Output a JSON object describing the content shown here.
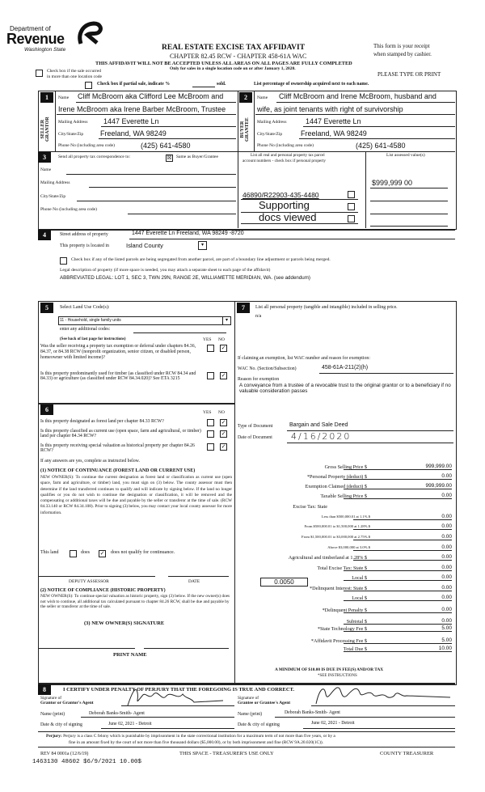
{
  "header": {
    "dept_of": "Department of",
    "revenue": "Revenue",
    "state": "Washington State",
    "title": "REAL ESTATE EXCISE TAX AFFIDAVIT",
    "chapter": "CHAPTER 82.45 RCW - CHAPTER 458-61A WAC",
    "warning": "THIS AFFIDAVIT WILL NOT BE ACCEPTED UNLESS ALL AREAS ON ALL PAGES ARE FULLY COMPLETED",
    "only_for": "Only for sales in a single location code on or after January 1, 2020.",
    "receipt_1": "This form is your receipt",
    "receipt_2": "when stamped by cashier.",
    "multi_location_1": "Check box if the sale occurred",
    "multi_location_2": "in more than one location code",
    "please_type": "PLEASE TYPE OR PRINT",
    "partial_sale": "Check box if partial sale, indicate %",
    "sold": "sold.",
    "list_pct": "List percentage of ownership acquired next to each name."
  },
  "section1": {
    "num": "1",
    "side_label_1": "SELLER",
    "side_label_2": "GRANTOR",
    "name_label": "Name",
    "name_1": "Cliff McBroom aka Clifford Lee McBroom and",
    "name_2": "Irene McBroom aka Irene Barber McBroom, Trustee",
    "mailing_label": "Mailing Address",
    "mailing": "1447 Everette Ln",
    "city_label": "City/State/Zip",
    "city": "Freeland, WA 98249",
    "phone_label": "Phone No (including area code)",
    "phone": "(425) 641-4580"
  },
  "section2": {
    "num": "2",
    "side_label_1": "BUYER",
    "side_label_2": "GRANTEE",
    "name_label": "Name",
    "name_1": "Cliff McBroom and Irene McBroom, husband and",
    "name_2": "wife, as joint tenants with right of survivorship",
    "mailing_label": "Mailing Address",
    "mailing": "1447 Everette Ln",
    "city_label": "City/State/Zip",
    "city": "Freeland, WA 98249",
    "phone_label": "Phone No (including area code)",
    "phone": "(425) 641-4580"
  },
  "section3": {
    "num": "3",
    "send_label": "Send all property tax correspondence to:",
    "same_as": "Same as Buyer/Grantee",
    "same_checked": true,
    "name_label": "Name",
    "mailing_label": "Mailing Address",
    "city_label": "City/State/Zip",
    "phone_label": "Phone No (including area code)",
    "parcel_header_1": "List all real and personal property tax parcel",
    "parcel_header_2": "account numbers - check box if personal property",
    "assessed_header": "List assessed value(s)",
    "parcel_1": "46890/R22903-435-4480",
    "assessed_1": "$999,999 00",
    "stamp_1": "Supporting",
    "stamp_2": "docs viewed"
  },
  "section4": {
    "num": "4",
    "street_label": "Street address of property",
    "street": "1447 Everette Ln Freeland, WA 98249 -8720",
    "located_label": "This property is located in",
    "county": "Island County",
    "segregated": "Check box if any of the listed parcels are being segregated from another parcel, are part of a boundary line adjustment or parcels being merged.",
    "legal_label": "Legal description of property (if more space is needed, you may attach a separate sheet to each page of the affidavit)",
    "legal": "ABBREVIATED LEGAL: LOT 1, SEC 3, TWN 29N, RANGE 2E, WILLIAMETTE MERIDIAN, WA. (see addendum)"
  },
  "section5": {
    "num": "5",
    "select_label": "Select Land Use Code(s):",
    "land_use": "11 - Household, single family units",
    "additional": "enter any additional codes:",
    "see_back": "(See back of last page for instructions)",
    "yes": "YES",
    "no": "NO",
    "q1": "Was the seller receiving a property tax exemption or deferral under chapters 84.36, 84.37, or 84.38 RCW (nonprofit organization, senior citizen, or disabled person, homeowner with limited income)?",
    "q2": "Is this property predominantly used for timber (as classified under RCW 84.34 and 84.33) or agriculture (as classified under RCW 84.34.020)? See ETA 3215"
  },
  "section6": {
    "num": "6",
    "yes": "YES",
    "no": "NO",
    "q1": "Is this property designated as forest land per chapter 84.33 RCW?",
    "q2": "Is this property classified as current use (open space, farm and agricultural, or timber) land per chapter 84.34 RCW?",
    "q3": "Is this property receiving special valuation as historical property per chapter 84.26 RCW?",
    "if_yes": "If any answers are yes, complete as instructed below.",
    "notice1_title": "(1) NOTICE OF CONTINUANCE (FOREST LAND OR CURRENT USE)",
    "notice1_text": "NEW OWNER(S): To continue the current designation as forest land or classification as current use (open space, farm and agriculture, or timber) land, you must sign on (3) below. The county assessor must then determine if the land transferred continues to qualify and will indicate by signing below. If the land no longer qualifies or you do not wish to continue the designation or classification, it will be removed and the compensating or additional taxes will be due and payable by the seller or transferor at the time of sale. (RCW 84.33.140 or RCW 84.34.108). Prior to signing (3) below, you may contact your local county assessor for more information.",
    "this_land": "This land",
    "does": "does",
    "does_not": "does not qualify for continuance.",
    "deputy": "DEPUTY ASSESSOR",
    "date": "DATE",
    "notice2_title": "(2) NOTICE OF COMPLIANCE (HISTORIC PROPERTY)",
    "notice2_text": "NEW OWNER(S): To continue special valuation as historic property, sign (3) below. If the new owner(s) does not wish to continue, all additional tax calculated pursuant to chapter 84.26 RCW, shall be due and payable by the seller or transferor at the time of sale.",
    "new_owner_sig": "(3) NEW OWNER(S) SIGNATURE",
    "print_name": "PRINT NAME"
  },
  "section7": {
    "num": "7",
    "list_label": "List all personal property (tangible and intangible) included in selling price.",
    "personal_property": "n/a",
    "exemption_label": "If claiming an exemption, list WAC number and reason for exemption:",
    "wac_label": "WAC No. (Section/Subsection)",
    "wac": "458-61A-211(2)(h)",
    "reason_label": "Reason for exemption",
    "reason": "A conveyance from a trustee of a revocable trust to the original grantor or to a beneficiary if no valuable consideration passes",
    "doc_type_label": "Type of Document",
    "doc_type": "Bargain and Sale Deed",
    "doc_date_label": "Date of Document",
    "doc_date": "4/16/2020",
    "local_rate": "0.0050",
    "fees": [
      {
        "label": "Gross Selling Price  $",
        "value": "999,999.00"
      },
      {
        "label": "*Personal Property (deduct)  $",
        "value": "0.00"
      },
      {
        "label": "Exemption Claimed (deduct)  $",
        "value": "999,999.00"
      },
      {
        "label": "Taxable Selling Price  $",
        "value": "0.00"
      },
      {
        "label": "Excise Tax: State",
        "value": ""
      },
      {
        "label": "Less than $500,000.01 at 1.1%  $",
        "value": "0.00"
      },
      {
        "label": "From $500,000.01 to $1,500,000 at 1.28%  $",
        "value": "0.00"
      },
      {
        "label": "From $1,500,000.01 to $3,000,000 at 2.75%  $",
        "value": "0.00"
      },
      {
        "label": "Above $3,000,000 at 3.0%  $",
        "value": "0.00"
      },
      {
        "label": "Agricultural and timberland at 1.28%  $",
        "value": "0.00"
      },
      {
        "label": "Total Excise Tax: State  $",
        "value": "0.00"
      },
      {
        "label": "Local  $",
        "value": "0.00"
      },
      {
        "label": "*Delinquent Interest: State  $",
        "value": "0.00"
      },
      {
        "label": "Local  $",
        "value": "0.00"
      },
      {
        "label": "*Delinquent Penalty  $",
        "value": "0.00"
      },
      {
        "label": "Subtotal  $",
        "value": "0.00"
      },
      {
        "label": "*State Technology Fee  $",
        "value": "5.00"
      },
      {
        "label": "*Affidavit Processing Fee  $",
        "value": "5.00"
      },
      {
        "label": "Total Due  $",
        "value": "10.00"
      }
    ],
    "minimum": "A MINIMUM OF $10.00 IS DUE IN FEE(S) AND/OR TAX",
    "see_instructions": "*SEE INSTRUCTIONS"
  },
  "section8": {
    "num": "8",
    "certify": "I CERTIFY UNDER PENALTY OF PERJURY THAT THE FOREGOING IS TRUE AND CORRECT.",
    "grantor_sig_1": "Signature of",
    "grantor_sig_2": "Grantor or Grantor's Agent",
    "grantee_sig_1": "Signature of",
    "grantee_sig_2": "Grantee or Grantee's Agent",
    "name_label": "Name (print)",
    "grantor_name": "Deborah Banks-Smith- Agent",
    "grantee_name": "Deborah Banks-Smith- Agent",
    "date_label": "Date & city of signing",
    "grantor_date": "June 02, 2021 - Detroit",
    "grantee_date": "June 02, 2021 - Detroit"
  },
  "footer": {
    "perjury_label": "Perjury:",
    "perjury_1": "Perjury is a class C felony which is punishable by imprisonment in the state correctional institution for a maximum term of not more than five years, or by a",
    "perjury_2": "fine in an amount fixed by the court of not more than five thousand dollars ($5,000.00), or by both imprisonment and fine (RCW 9A.20.020(1C)).",
    "rev": "REV 84 0001a (12/6/19)",
    "treasurer_use": "THIS SPACE - TREASURER'S USE ONLY",
    "county_treasurer": "COUNTY TREASURER",
    "stamp": "1463130 48602 $6/9/2021 10.00$"
  }
}
